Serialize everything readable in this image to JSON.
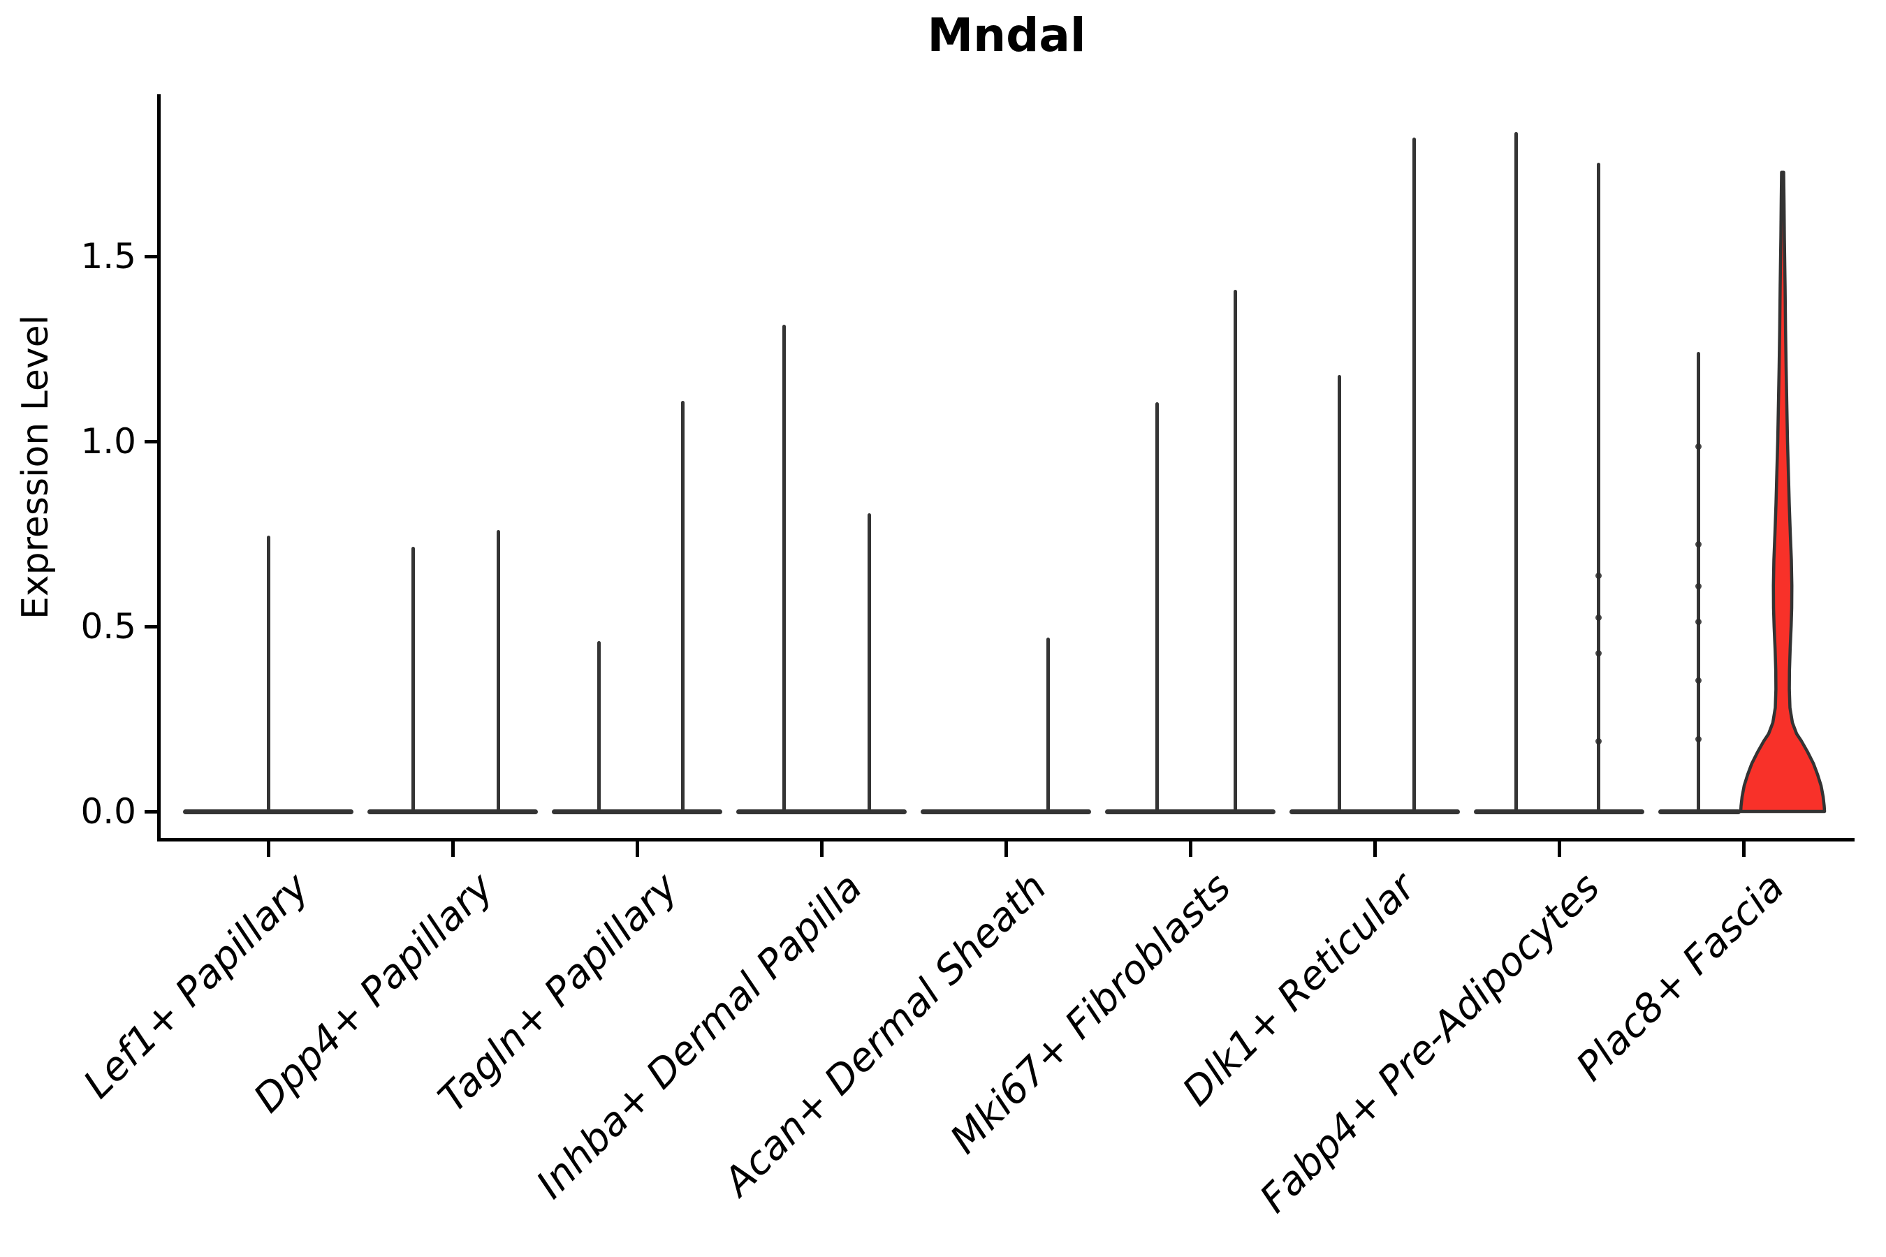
{
  "title": "Mndal",
  "y_axis": {
    "label": "Expression Level",
    "tick_labels": [
      "0.0",
      "0.5",
      "1.0",
      "1.5"
    ],
    "tick_values": [
      0.0,
      0.5,
      1.0,
      1.5
    ]
  },
  "colors": {
    "ink": "#343434",
    "outline": "#333333",
    "highlight_fill": "#f83129",
    "background": "#ffffff",
    "text": "#000000"
  },
  "chart_data": {
    "type": "violin",
    "title": "Mndal",
    "xlabel": "",
    "ylabel": "Expression Level",
    "ylim": [
      -0.08,
      1.94
    ],
    "yticks": [
      0.0,
      0.5,
      1.0,
      1.5
    ],
    "grid": false,
    "legend": "none",
    "note": "Single-cell gene expression violin plot; most populations collapse to near-zero density with thin spikes to their maximum expression; Plac8+ Fascia is highlighted with a red filled violin",
    "categories": [
      "Lef1+ Papillary",
      "Dpp4+ Papillary",
      "Tagln+ Papillary",
      "Inhba+ Dermal Papilla",
      "Acan+ Dermal Sheath",
      "Mki67+ Fibroblasts",
      "Dlk1+ Reticular",
      "Fabp4+ Pre-Adipocytes",
      "Plac8+ Fascia"
    ],
    "violins": [
      {
        "category": "Lef1+ Papillary",
        "spikes": [
          {
            "dx": 0,
            "max": 0.745,
            "dots": []
          }
        ]
      },
      {
        "category": "Dpp4+ Papillary",
        "spikes": [
          {
            "dx": -57,
            "max": 0.715,
            "dots": []
          },
          {
            "dx": 65,
            "max": 0.76,
            "dots": []
          }
        ]
      },
      {
        "category": "Tagln+ Papillary",
        "spikes": [
          {
            "dx": -55,
            "max": 0.46,
            "dots": []
          },
          {
            "dx": 65,
            "max": 1.11,
            "dots": []
          }
        ]
      },
      {
        "category": "Inhba+ Dermal Papilla",
        "spikes": [
          {
            "dx": -54,
            "max": 1.315,
            "dots": []
          },
          {
            "dx": 68,
            "max": 0.805,
            "dots": []
          }
        ]
      },
      {
        "category": "Acan+ Dermal Sheath",
        "spikes": [
          {
            "dx": 60,
            "max": 0.47,
            "dots": []
          }
        ]
      },
      {
        "category": "Mki67+ Fibroblasts",
        "spikes": [
          {
            "dx": -48,
            "max": 1.105,
            "dots": []
          },
          {
            "dx": 64,
            "max": 1.41,
            "dots": []
          }
        ]
      },
      {
        "category": "Dlk1+ Reticular",
        "spikes": [
          {
            "dx": -51,
            "max": 1.18,
            "dots": []
          },
          {
            "dx": 56,
            "max": 1.82,
            "dots": []
          }
        ]
      },
      {
        "category": "Fabp4+ Pre-Adipocytes",
        "spikes": [
          {
            "dx": -62,
            "max": 1.835,
            "dots": []
          },
          {
            "dx": 56,
            "max": 1.752,
            "dots": [
              0.636,
              0.523,
              0.428,
              0.189
            ]
          }
        ]
      },
      {
        "category": "Plac8+ Fascia",
        "spikes": [
          {
            "dx": -65,
            "max": 1.242,
            "dots": [
              0.985,
              0.721,
              0.608,
              0.513,
              0.353,
              0.196
            ]
          }
        ],
        "highlight_violin": {
          "dx": 56,
          "max": 1.727,
          "fill": "#f83129",
          "profile": [
            [
              1.727,
              1.5
            ],
            [
              1.65,
              2
            ],
            [
              1.55,
              2.5
            ],
            [
              1.42,
              3.5
            ],
            [
              1.3,
              4.2
            ],
            [
              1.2,
              5
            ],
            [
              1.1,
              6
            ],
            [
              1.0,
              7
            ],
            [
              0.9,
              8.5
            ],
            [
              0.83,
              9.5
            ],
            [
              0.75,
              11
            ],
            [
              0.68,
              12.5
            ],
            [
              0.61,
              13.2
            ],
            [
              0.55,
              13
            ],
            [
              0.5,
              12.2
            ],
            [
              0.44,
              10.8
            ],
            [
              0.38,
              9.8
            ],
            [
              0.33,
              9.6
            ],
            [
              0.28,
              10.5
            ],
            [
              0.24,
              14
            ],
            [
              0.21,
              20
            ],
            [
              0.19,
              27
            ],
            [
              0.16,
              36
            ],
            [
              0.13,
              44
            ],
            [
              0.1,
              50
            ],
            [
              0.07,
              55
            ],
            [
              0.04,
              58
            ],
            [
              0.015,
              59.5
            ],
            [
              0.0,
              60
            ]
          ]
        }
      }
    ]
  }
}
